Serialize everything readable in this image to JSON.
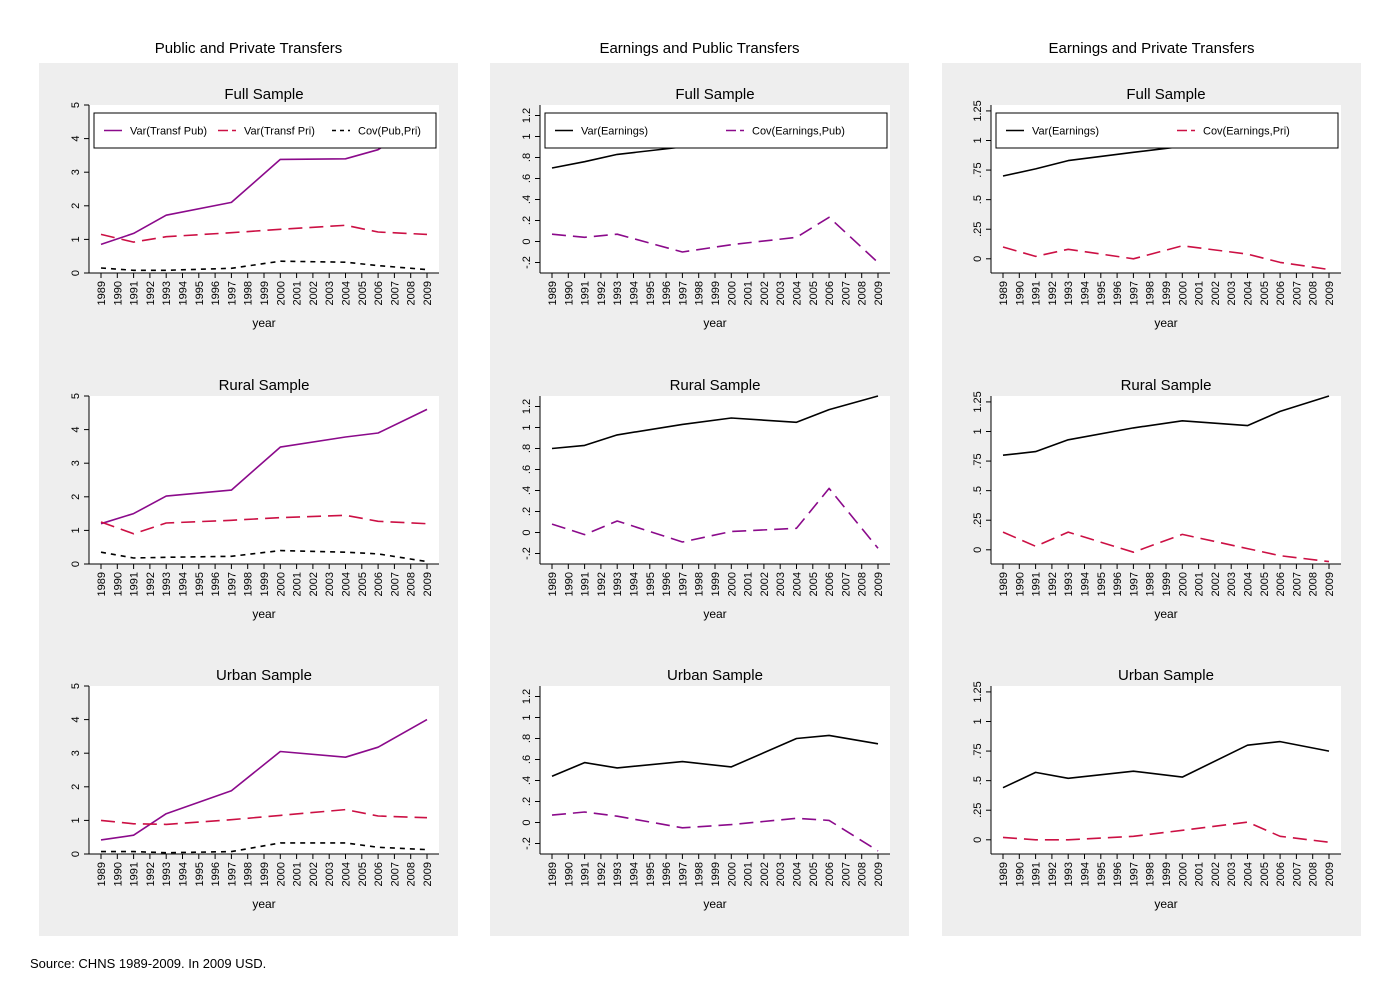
{
  "columns": [
    {
      "title": "Public and Private Transfers"
    },
    {
      "title": "Earnings and Public Transfers"
    },
    {
      "title": "Earnings and Private Transfers"
    }
  ],
  "source": "Source: CHNS 1989-2009. In 2009 USD.",
  "colors": {
    "purple": "#8b0a8b",
    "crimson": "#cc1044",
    "black": "#000000",
    "panel_bg": "#eeeeee"
  },
  "chart_data": [
    {
      "id": "pp_full",
      "type": "line",
      "title": "Full Sample",
      "xlabel": "year",
      "ylabel": "",
      "x": [
        1989,
        1991,
        1993,
        1997,
        2000,
        2004,
        2006,
        2009
      ],
      "ylim": [
        0,
        5
      ],
      "yticks": [
        "0",
        "1",
        "2",
        "3",
        "4",
        "5"
      ],
      "ytick_values": [
        0,
        1,
        2,
        3,
        4,
        5
      ],
      "legend": {
        "show": true,
        "entries": [
          "Var(Transf Pub)",
          "Var(Transf Pri)",
          "Cov(Pub,Pri)"
        ]
      },
      "series": [
        {
          "name": "Var(Transf Pub)",
          "color": "#8b0a8b",
          "dash": "solid",
          "values": [
            0.85,
            1.18,
            1.72,
            2.1,
            3.38,
            3.4,
            3.67,
            4.6
          ]
        },
        {
          "name": "Var(Transf Pri)",
          "color": "#cc1044",
          "dash": "long",
          "values": [
            1.15,
            0.92,
            1.08,
            1.2,
            1.3,
            1.42,
            1.22,
            1.15
          ]
        },
        {
          "name": "Cov(Pub,Pri)",
          "color": "#000000",
          "dash": "short",
          "values": [
            0.15,
            0.08,
            0.08,
            0.14,
            0.35,
            0.32,
            0.22,
            0.1
          ]
        }
      ]
    },
    {
      "id": "pp_rural",
      "type": "line",
      "title": "Rural Sample",
      "xlabel": "year",
      "ylabel": "",
      "x": [
        1989,
        1991,
        1993,
        1997,
        2000,
        2004,
        2006,
        2009
      ],
      "ylim": [
        0,
        5
      ],
      "yticks": [
        "0",
        "1",
        "2",
        "3",
        "4",
        "5"
      ],
      "ytick_values": [
        0,
        1,
        2,
        3,
        4,
        5
      ],
      "legend": {
        "show": false
      },
      "series": [
        {
          "name": "Var(Transf Pub)",
          "color": "#8b0a8b",
          "dash": "solid",
          "values": [
            1.2,
            1.5,
            2.02,
            2.2,
            3.48,
            3.78,
            3.9,
            4.6
          ]
        },
        {
          "name": "Var(Transf Pri)",
          "color": "#cc1044",
          "dash": "long",
          "values": [
            1.25,
            0.9,
            1.22,
            1.3,
            1.38,
            1.45,
            1.27,
            1.2
          ]
        },
        {
          "name": "Cov(Pub,Pri)",
          "color": "#000000",
          "dash": "short",
          "values": [
            0.35,
            0.18,
            0.2,
            0.23,
            0.4,
            0.35,
            0.3,
            0.07
          ]
        }
      ]
    },
    {
      "id": "pp_urban",
      "type": "line",
      "title": "Urban Sample",
      "xlabel": "year",
      "ylabel": "",
      "x": [
        1989,
        1991,
        1993,
        1997,
        2000,
        2004,
        2006,
        2009
      ],
      "ylim": [
        0,
        5
      ],
      "yticks": [
        "0",
        "1",
        "2",
        "3",
        "4",
        "5"
      ],
      "ytick_values": [
        0,
        1,
        2,
        3,
        4,
        5
      ],
      "legend": {
        "show": false
      },
      "series": [
        {
          "name": "Var(Transf Pub)",
          "color": "#8b0a8b",
          "dash": "solid",
          "values": [
            0.42,
            0.56,
            1.2,
            1.88,
            3.05,
            2.88,
            3.18,
            4.0
          ]
        },
        {
          "name": "Var(Transf Pri)",
          "color": "#cc1044",
          "dash": "long",
          "values": [
            1.0,
            0.9,
            0.88,
            1.02,
            1.15,
            1.32,
            1.13,
            1.08
          ]
        },
        {
          "name": "Cov(Pub,Pri)",
          "color": "#000000",
          "dash": "short",
          "values": [
            0.07,
            0.07,
            0.04,
            0.07,
            0.33,
            0.33,
            0.2,
            0.13
          ]
        }
      ]
    },
    {
      "id": "ep_full",
      "type": "line",
      "title": "Full Sample",
      "xlabel": "year",
      "ylabel": "",
      "x": [
        1989,
        1991,
        1993,
        1997,
        2000,
        2004,
        2006,
        2009
      ],
      "ylim": [
        -0.3,
        1.3
      ],
      "yticks": [
        "-.2",
        "0",
        ".2",
        ".4",
        ".6",
        ".8",
        "1",
        "1.2"
      ],
      "ytick_values": [
        -0.2,
        0,
        0.2,
        0.4,
        0.6,
        0.8,
        1,
        1.2
      ],
      "legend": {
        "show": true,
        "entries": [
          "Var(Earnings)",
          "Cov(Earnings,Pub)"
        ]
      },
      "series": [
        {
          "name": "Var(Earnings)",
          "color": "#000000",
          "dash": "solid",
          "values": [
            0.7,
            0.76,
            0.83,
            0.9,
            0.95,
            1.02,
            1.1,
            1.18
          ]
        },
        {
          "name": "Cov(Earnings,Pub)",
          "color": "#8b0a8b",
          "dash": "long",
          "values": [
            0.07,
            0.04,
            0.07,
            -0.1,
            -0.03,
            0.04,
            0.23,
            -0.2
          ]
        }
      ]
    },
    {
      "id": "ep_rural",
      "type": "line",
      "title": "Rural Sample",
      "xlabel": "year",
      "ylabel": "",
      "x": [
        1989,
        1991,
        1993,
        1997,
        2000,
        2004,
        2006,
        2009
      ],
      "ylim": [
        -0.3,
        1.3
      ],
      "yticks": [
        "-.2",
        "0",
        ".2",
        ".4",
        ".6",
        ".8",
        "1",
        "1.2"
      ],
      "ytick_values": [
        -0.2,
        0,
        0.2,
        0.4,
        0.6,
        0.8,
        1,
        1.2
      ],
      "legend": {
        "show": false
      },
      "series": [
        {
          "name": "Var(Earnings)",
          "color": "#000000",
          "dash": "solid",
          "values": [
            0.8,
            0.83,
            0.93,
            1.03,
            1.09,
            1.05,
            1.17,
            1.3
          ]
        },
        {
          "name": "Cov(Earnings,Pub)",
          "color": "#8b0a8b",
          "dash": "long",
          "values": [
            0.08,
            -0.02,
            0.11,
            -0.09,
            0.01,
            0.04,
            0.42,
            -0.15
          ]
        }
      ]
    },
    {
      "id": "ep_urban",
      "type": "line",
      "title": "Urban Sample",
      "xlabel": "year",
      "ylabel": "",
      "x": [
        1989,
        1991,
        1993,
        1997,
        2000,
        2004,
        2006,
        2009
      ],
      "ylim": [
        -0.3,
        1.3
      ],
      "yticks": [
        "-.2",
        "0",
        ".2",
        ".4",
        ".6",
        ".8",
        "1",
        "1.2"
      ],
      "ytick_values": [
        -0.2,
        0,
        0.2,
        0.4,
        0.6,
        0.8,
        1,
        1.2
      ],
      "legend": {
        "show": false
      },
      "series": [
        {
          "name": "Var(Earnings)",
          "color": "#000000",
          "dash": "solid",
          "values": [
            0.44,
            0.57,
            0.52,
            0.58,
            0.53,
            0.8,
            0.83,
            0.75
          ]
        },
        {
          "name": "Cov(Earnings,Pub)",
          "color": "#8b0a8b",
          "dash": "long",
          "values": [
            0.07,
            0.1,
            0.06,
            -0.05,
            -0.02,
            0.04,
            0.02,
            -0.27
          ]
        }
      ]
    },
    {
      "id": "epr_full",
      "type": "line",
      "title": "Full Sample",
      "xlabel": "year",
      "ylabel": "",
      "x": [
        1989,
        1991,
        1993,
        1997,
        2000,
        2004,
        2006,
        2009
      ],
      "ylim": [
        -0.12,
        1.3
      ],
      "yticks": [
        "0",
        ".25",
        ".5",
        ".75",
        "1",
        "1.25"
      ],
      "ytick_values": [
        0,
        0.25,
        0.5,
        0.75,
        1,
        1.25
      ],
      "legend": {
        "show": true,
        "entries": [
          "Var(Earnings)",
          "Cov(Earnings,Pri)"
        ]
      },
      "series": [
        {
          "name": "Var(Earnings)",
          "color": "#000000",
          "dash": "solid",
          "values": [
            0.7,
            0.76,
            0.83,
            0.9,
            0.95,
            1.02,
            1.1,
            1.18
          ]
        },
        {
          "name": "Cov(Earnings,Pri)",
          "color": "#cc1044",
          "dash": "long",
          "values": [
            0.1,
            0.02,
            0.08,
            0.0,
            0.11,
            0.04,
            -0.03,
            -0.09
          ]
        }
      ]
    },
    {
      "id": "epr_rural",
      "type": "line",
      "title": "Rural Sample",
      "xlabel": "year",
      "ylabel": "",
      "x": [
        1989,
        1991,
        1993,
        1997,
        2000,
        2004,
        2006,
        2009
      ],
      "ylim": [
        -0.12,
        1.3
      ],
      "yticks": [
        "0",
        ".25",
        ".5",
        ".75",
        "1",
        "1.25"
      ],
      "ytick_values": [
        0,
        0.25,
        0.5,
        0.75,
        1,
        1.25
      ],
      "legend": {
        "show": false
      },
      "series": [
        {
          "name": "Var(Earnings)",
          "color": "#000000",
          "dash": "solid",
          "values": [
            0.8,
            0.83,
            0.93,
            1.03,
            1.09,
            1.05,
            1.17,
            1.3
          ]
        },
        {
          "name": "Cov(Earnings,Pri)",
          "color": "#cc1044",
          "dash": "long",
          "values": [
            0.15,
            0.03,
            0.15,
            -0.02,
            0.13,
            0.01,
            -0.05,
            -0.1
          ]
        }
      ]
    },
    {
      "id": "epr_urban",
      "type": "line",
      "title": "Urban Sample",
      "xlabel": "year",
      "ylabel": "",
      "x": [
        1989,
        1991,
        1993,
        1997,
        2000,
        2004,
        2006,
        2009
      ],
      "ylim": [
        -0.12,
        1.3
      ],
      "yticks": [
        "0",
        ".25",
        ".5",
        ".75",
        "1",
        "1.25"
      ],
      "ytick_values": [
        0,
        0.25,
        0.5,
        0.75,
        1,
        1.25
      ],
      "legend": {
        "show": false
      },
      "series": [
        {
          "name": "Var(Earnings)",
          "color": "#000000",
          "dash": "solid",
          "values": [
            0.44,
            0.57,
            0.52,
            0.58,
            0.53,
            0.8,
            0.83,
            0.75
          ]
        },
        {
          "name": "Cov(Earnings,Pri)",
          "color": "#cc1044",
          "dash": "long",
          "values": [
            0.02,
            0.0,
            0.0,
            0.03,
            0.08,
            0.15,
            0.03,
            -0.02
          ]
        }
      ]
    }
  ],
  "year_ticks": [
    "1989",
    "1990",
    "1991",
    "1992",
    "1993",
    "1994",
    "1995",
    "1996",
    "1997",
    "1998",
    "1999",
    "2000",
    "2001",
    "2002",
    "2003",
    "2004",
    "2005",
    "2006",
    "2007",
    "2008",
    "2009"
  ]
}
